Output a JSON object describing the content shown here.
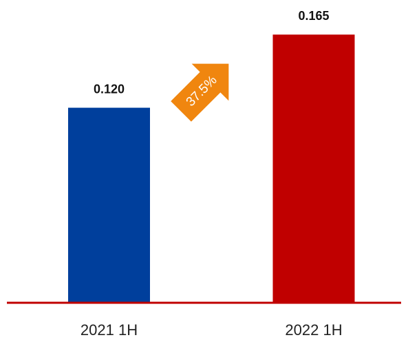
{
  "chart_data": {
    "type": "bar",
    "categories": [
      "2021 1H",
      "2022 1H"
    ],
    "values": [
      0.12,
      0.165
    ],
    "value_labels": [
      "0.120",
      "0.165"
    ],
    "colors": [
      "#003f9c",
      "#c00000"
    ],
    "axis_color": "#c00000",
    "annotation": {
      "text": "37.5%",
      "color": "#f0860f"
    }
  }
}
